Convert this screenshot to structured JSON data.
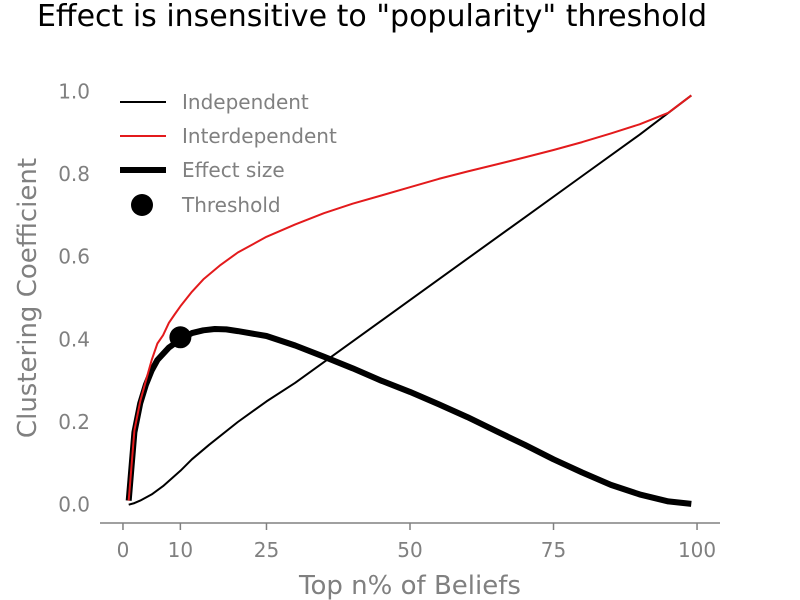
{
  "chart_data": {
    "type": "line",
    "title": "Effect is insensitive to \"popularity\" threshold",
    "xlabel": "Top n% of Beliefs",
    "ylabel": "Clustering Coefficient",
    "xlim": [
      -4,
      104
    ],
    "ylim": [
      -0.02,
      1.02
    ],
    "x_ticks": [
      0,
      10,
      25,
      50,
      75,
      100
    ],
    "y_ticks": [
      0.0,
      0.2,
      0.4,
      0.6,
      0.8,
      1.0
    ],
    "y_tick_labels": [
      "0.0",
      "0.2",
      "0.4",
      "0.6",
      "0.8",
      "1.0"
    ],
    "grid": false,
    "legend": {
      "position": "top-left",
      "entries": [
        "Independent",
        "Interdependent",
        "Effect size",
        "Threshold"
      ]
    },
    "series": [
      {
        "name": "Independent",
        "color": "#000000",
        "style": "thin",
        "x": [
          1,
          2,
          3,
          5,
          7,
          10,
          12,
          15,
          20,
          25,
          30,
          40,
          50,
          60,
          70,
          80,
          90,
          99
        ],
        "y": [
          0.0,
          0.004,
          0.01,
          0.025,
          0.045,
          0.082,
          0.11,
          0.145,
          0.2,
          0.25,
          0.295,
          0.395,
          0.495,
          0.595,
          0.695,
          0.795,
          0.895,
          0.99
        ]
      },
      {
        "name": "Interdependent",
        "color": "#e31a1c",
        "style": "thin",
        "x": [
          1,
          2,
          3,
          4,
          5,
          6,
          7,
          8,
          9,
          10,
          12,
          14,
          17,
          20,
          25,
          30,
          35,
          40,
          45,
          50,
          55,
          60,
          65,
          70,
          75,
          80,
          85,
          90,
          95,
          99
        ],
        "y": [
          0.01,
          0.18,
          0.25,
          0.3,
          0.35,
          0.39,
          0.41,
          0.44,
          0.46,
          0.48,
          0.515,
          0.545,
          0.58,
          0.61,
          0.648,
          0.678,
          0.705,
          0.728,
          0.748,
          0.768,
          0.788,
          0.806,
          0.823,
          0.84,
          0.858,
          0.877,
          0.898,
          0.92,
          0.948,
          0.99
        ]
      },
      {
        "name": "Effect size",
        "color": "#000000",
        "style": "thick",
        "x": [
          1,
          2,
          3,
          4,
          5,
          6,
          7,
          8,
          9,
          10,
          12,
          14,
          16,
          18,
          20,
          25,
          30,
          35,
          40,
          45,
          50,
          55,
          60,
          65,
          70,
          75,
          80,
          85,
          90,
          95,
          99
        ],
        "y": [
          0.01,
          0.175,
          0.245,
          0.29,
          0.325,
          0.35,
          0.365,
          0.38,
          0.39,
          0.4,
          0.415,
          0.422,
          0.425,
          0.424,
          0.42,
          0.408,
          0.385,
          0.358,
          0.33,
          0.3,
          0.273,
          0.243,
          0.212,
          0.178,
          0.145,
          0.11,
          0.078,
          0.048,
          0.025,
          0.008,
          0.002
        ]
      }
    ],
    "threshold_point": {
      "name": "Threshold",
      "x": 10,
      "y": 0.405,
      "color": "#000000"
    }
  }
}
